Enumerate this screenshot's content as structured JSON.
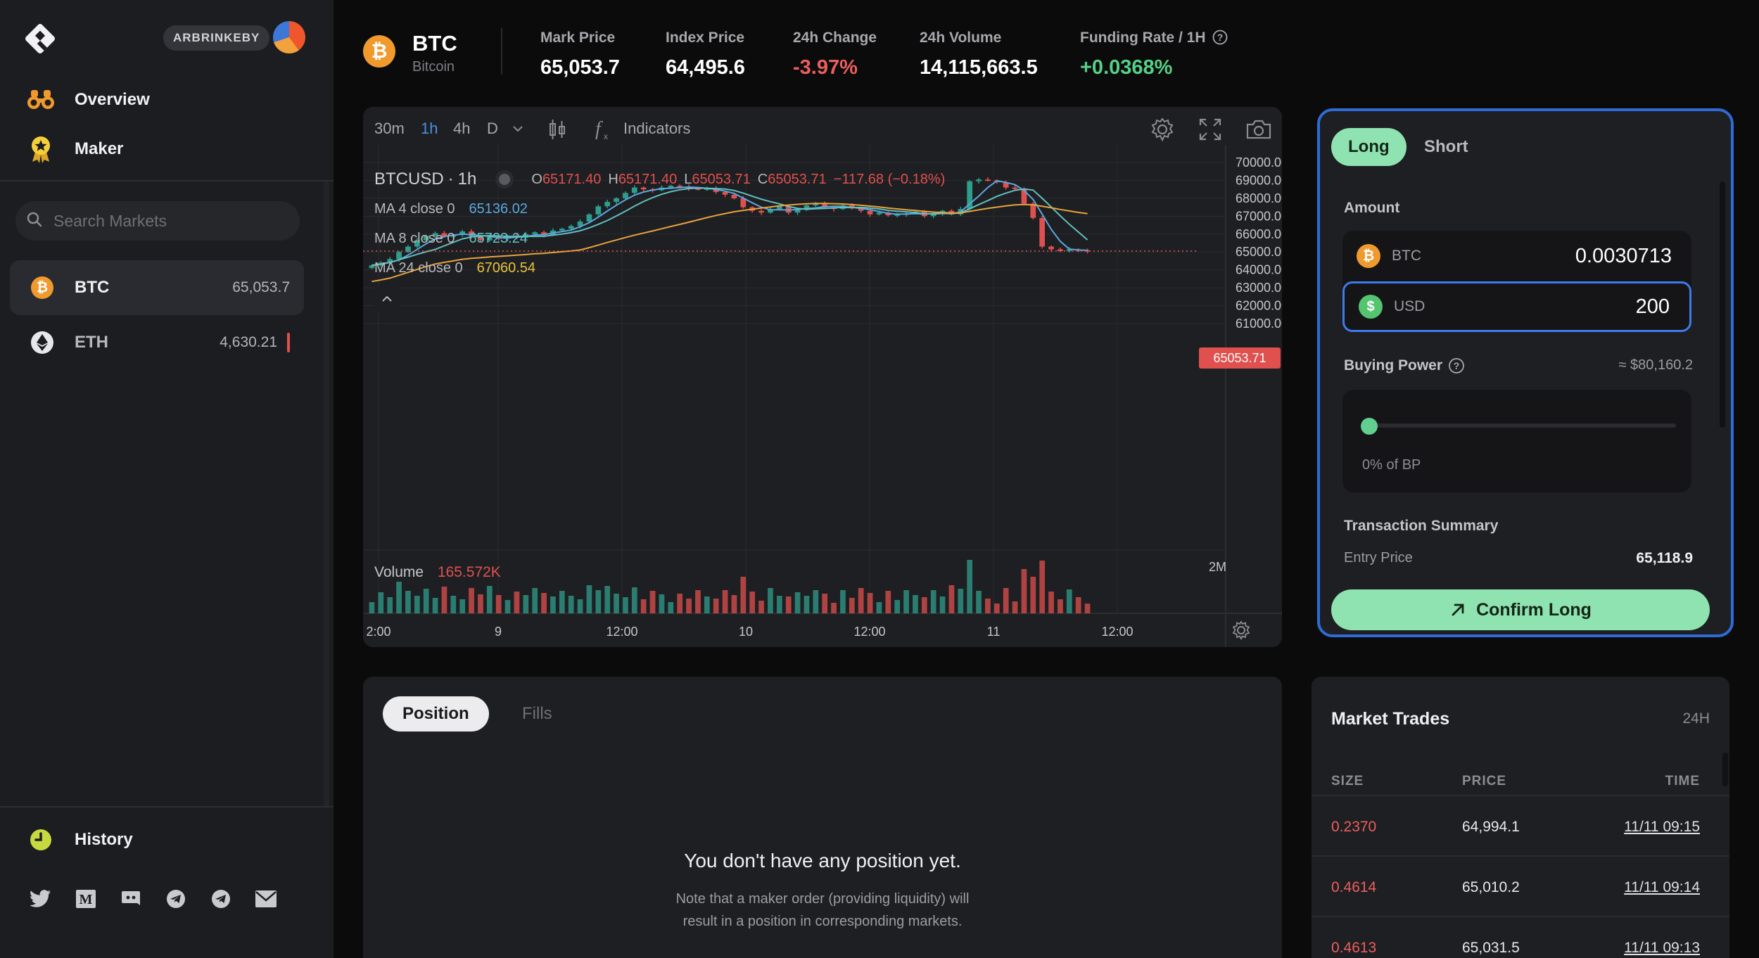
{
  "user": {
    "name": "ARBRINKEBY"
  },
  "nav": {
    "overview": "Overview",
    "maker": "Maker",
    "history": "History"
  },
  "search": {
    "placeholder": "Search Markets"
  },
  "markets": [
    {
      "symbol": "BTC",
      "price": "65,053.7"
    },
    {
      "symbol": "ETH",
      "price": "4,630.21"
    }
  ],
  "socials": [
    "twitter-icon",
    "medium-icon",
    "discord-icon",
    "telegram-icon",
    "telegram-icon",
    "mail-icon"
  ],
  "ticker": {
    "symbol": "BTC",
    "name": "Bitcoin",
    "mark_label": "Mark Price",
    "mark_value": "65,053.7",
    "index_label": "Index Price",
    "index_value": "64,495.6",
    "change_label": "24h Change",
    "change_value": "-3.97%",
    "volume_label": "24h Volume",
    "volume_value": "14,115,663.5",
    "funding_label": "Funding Rate / 1H",
    "funding_value": "+0.0368%"
  },
  "chart": {
    "timeframes": [
      "30m",
      "1h",
      "4h",
      "D"
    ],
    "active_timeframe": "1h",
    "indicators_label": "Indicators",
    "pair": "BTCUSD",
    "interval": "1h",
    "ohlc": {
      "o_label": "O",
      "o": "65171.40",
      "h_label": "H",
      "h": "65171.40",
      "l_label": "L",
      "l": "65053.71",
      "c_label": "C",
      "c": "65053.71",
      "change": "−117.68 (−0.18%)"
    },
    "ma": [
      {
        "label": "MA 4 close 0",
        "value": "65136.02",
        "color": "#5aa8e0"
      },
      {
        "label": "MA 8 close 0",
        "value": "65723.24",
        "color": "#63c0bf"
      },
      {
        "label": "MA 24 close 0",
        "value": "67060.54",
        "color": "#e8a33d"
      }
    ],
    "volume_label": "Volume",
    "volume_value": "165.572K",
    "volume_axis": "2M",
    "current_price_tag": "65053.71",
    "price_axis": [
      "70000.00",
      "69000.00",
      "68000.00",
      "67000.00",
      "66000.00",
      "65000.00",
      "64000.00",
      "63000.00",
      "62000.00",
      "61000.00"
    ],
    "time_axis": [
      "2:00",
      "9",
      "12:00",
      "10",
      "12:00",
      "11",
      "12:00"
    ]
  },
  "chart_data": {
    "type": "candlestick",
    "symbol": "BTCUSD",
    "interval": "1h",
    "ylim": [
      60500,
      70500
    ],
    "y_ticks": [
      61000,
      62000,
      63000,
      64000,
      65000,
      66000,
      67000,
      68000,
      69000,
      70000
    ],
    "x_ticks": [
      "2:00",
      "9",
      "12:00",
      "10",
      "12:00",
      "11",
      "12:00"
    ],
    "close": [
      64250,
      64400,
      64600,
      65000,
      65300,
      65650,
      65900,
      66050,
      65850,
      65950,
      66150,
      65900,
      65650,
      65850,
      65750,
      65900,
      65800,
      66000,
      66100,
      65950,
      66200,
      66300,
      66450,
      66700,
      67100,
      67550,
      67800,
      68000,
      68300,
      68600,
      68500,
      68450,
      68600,
      68700,
      68650,
      68550,
      68500,
      68550,
      68350,
      68200,
      68000,
      67500,
      67300,
      67200,
      67400,
      67550,
      67200,
      67350,
      67600,
      67700,
      67500,
      67400,
      67600,
      67450,
      67300,
      67100,
      67200,
      67050,
      67100,
      67150,
      67250,
      67000,
      67150,
      67300,
      67100,
      67400,
      68950,
      69050,
      69000,
      68900,
      68600,
      68550,
      67700,
      66900,
      65300,
      65150,
      65050,
      65150,
      65100,
      65053.71
    ],
    "ma": [
      {
        "name": "MA 4",
        "last": 65136.02
      },
      {
        "name": "MA 8",
        "last": 65723.24
      },
      {
        "name": "MA 24",
        "last": 67060.54
      }
    ],
    "volume_last": "165.572K",
    "last_price": 65053.71,
    "legend": "top-left",
    "grid": true
  },
  "trade": {
    "long_label": "Long",
    "short_label": "Short",
    "amount_label": "Amount",
    "btc_label": "BTC",
    "btc_value": "0.0030713",
    "usd_label": "USD",
    "usd_value": "200",
    "bp_label": "Buying Power",
    "bp_value": "≈ $80,160.2",
    "bp_fraction": 0,
    "bp_text": "0% of BP",
    "summary_label": "Transaction Summary",
    "entry_label": "Entry Price",
    "entry_value": "65,118.9",
    "confirm_label": "Confirm Long"
  },
  "positions": {
    "tab_position": "Position",
    "tab_fills": "Fills",
    "empty_title": "You don't have any position yet.",
    "empty_note_1": "Note that a maker order (providing liquidity) will",
    "empty_note_2": "result in a position in corresponding markets."
  },
  "market_trades": {
    "title": "Market Trades",
    "range": "24H",
    "headers": {
      "size": "SIZE",
      "price": "PRICE",
      "time": "TIME"
    },
    "rows": [
      {
        "size": "0.2370",
        "price": "64,994.1",
        "time": "11/11 09:15"
      },
      {
        "size": "0.4614",
        "price": "65,010.2",
        "time": "11/11 09:14"
      },
      {
        "size": "0.4613",
        "price": "65,031.5",
        "time": "11/11 09:13"
      }
    ]
  },
  "colors": {
    "up": "#2f9d8b",
    "down": "#e0504e",
    "accent_green": "#8fe3b0",
    "accent_blue": "#2e6bd6",
    "btc": "#f09a2e"
  }
}
